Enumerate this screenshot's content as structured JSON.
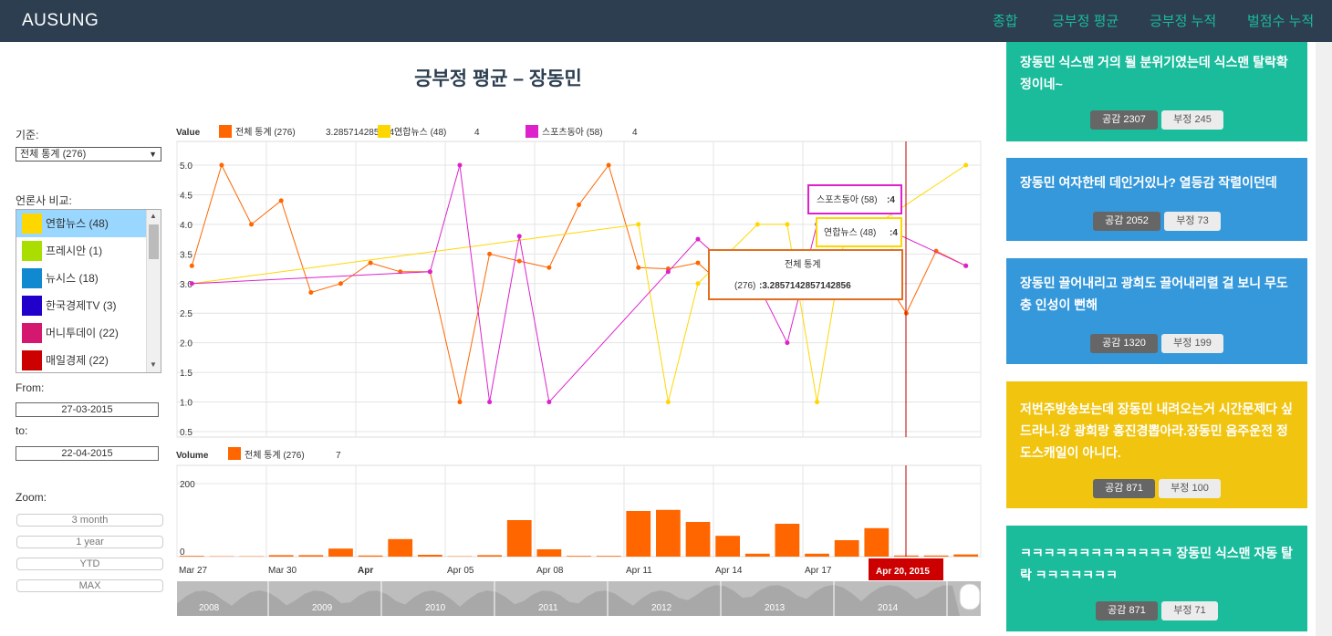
{
  "navbar": {
    "brand": "AUSUNG",
    "links": [
      "종합",
      "긍부정 평균",
      "긍부정 누적",
      "벌점수 누적"
    ]
  },
  "page_title": "긍부정 평균 – 장동민",
  "controls": {
    "basis_label": "기준:",
    "basis_value": "전체 통계 (276)",
    "compare_label": "언론사 비교:",
    "outlets": [
      {
        "label": "연합뉴스 (48)",
        "color": "#ffd700",
        "selected": true
      },
      {
        "label": "프레시안 (1)",
        "color": "#aadd00",
        "selected": false
      },
      {
        "label": "뉴시스 (18)",
        "color": "#1189d0",
        "selected": false
      },
      {
        "label": "한국경제TV (3)",
        "color": "#2200cc",
        "selected": false
      },
      {
        "label": "머니투데이 (22)",
        "color": "#d41870",
        "selected": false
      },
      {
        "label": "매일경제 (22)",
        "color": "#cc0000",
        "selected": false
      }
    ],
    "from_label": "From:",
    "from_value": "27-03-2015",
    "to_label": "to:",
    "to_value": "22-04-2015",
    "zoom_label": "Zoom:",
    "zoom_options": [
      "3 month",
      "1 year",
      "YTD",
      "MAX"
    ]
  },
  "chart_data": [
    {
      "type": "line",
      "title": "Value",
      "ylim": [
        0.5,
        5.0
      ],
      "yticks": [
        "5.0",
        "4.5",
        "4.0",
        "3.5",
        "3.0",
        "2.5",
        "2.0",
        "1.5",
        "1.0",
        "0.5"
      ],
      "legend": [
        {
          "name": "전체 통계 (276)",
          "value": "3.285714285714…",
          "color": "#ff6600"
        },
        {
          "name": "연합뉴스 (48)",
          "value": "4",
          "color": "#ffd700"
        },
        {
          "name": "스포츠동아 (58)",
          "value": "4",
          "color": "#dd22cc"
        }
      ],
      "x_labels": [
        "Mar 27",
        "Mar 30",
        "Apr",
        "Apr 05",
        "Apr 08",
        "Apr 11",
        "Apr 14",
        "Apr 17",
        "Apr 20, 2015"
      ],
      "series": [
        {
          "name": "전체 통계 (276)",
          "color": "#ff6600",
          "values": [
            [
              27,
              3.3
            ],
            [
              28,
              5.0
            ],
            [
              29,
              4.0
            ],
            [
              30,
              4.4
            ],
            [
              31,
              2.85
            ],
            [
              32,
              3.0
            ],
            [
              33,
              3.35
            ],
            [
              34,
              3.2
            ],
            [
              35,
              3.2
            ],
            [
              36,
              1.0
            ],
            [
              37,
              3.5
            ],
            [
              38,
              3.38
            ],
            [
              39,
              3.27
            ],
            [
              40,
              4.33
            ],
            [
              41,
              5.0
            ],
            [
              42,
              3.27
            ],
            [
              43,
              3.25
            ],
            [
              44,
              3.35
            ],
            [
              45,
              2.9
            ],
            [
              46,
              2.97
            ],
            [
              47,
              3.3
            ],
            [
              48,
              3.35
            ],
            [
              49,
              3.2
            ],
            [
              50,
              3.29
            ],
            [
              51,
              2.5
            ],
            [
              52,
              3.55
            ],
            [
              53,
              3.3
            ]
          ]
        },
        {
          "name": "연합뉴스 (48)",
          "color": "#ffd700",
          "values": [
            [
              27,
              3.0
            ],
            [
              42,
              4.0
            ],
            [
              43,
              1.0
            ],
            [
              44,
              3.0
            ],
            [
              46,
              4.0
            ],
            [
              47,
              4.0
            ],
            [
              48,
              1.0
            ],
            [
              49,
              4.0
            ],
            [
              50,
              4.0
            ],
            [
              53,
              5.0
            ]
          ]
        },
        {
          "name": "스포츠동아 (58)",
          "color": "#dd22cc",
          "values": [
            [
              27,
              3.0
            ],
            [
              35,
              3.2
            ],
            [
              36,
              5.0
            ],
            [
              37,
              1.0
            ],
            [
              38,
              3.8
            ],
            [
              39,
              1.0
            ],
            [
              43,
              3.2
            ],
            [
              44,
              3.75
            ],
            [
              45,
              3.3
            ],
            [
              46,
              3.0
            ],
            [
              47,
              2.0
            ],
            [
              48,
              4.0
            ],
            [
              49,
              4.0
            ],
            [
              50,
              4.0
            ],
            [
              53,
              3.3
            ]
          ]
        }
      ],
      "tooltips": [
        {
          "series": "스포츠동아 (58)",
          "value": "4"
        },
        {
          "series": "연합뉴스 (48)",
          "value": "4"
        },
        {
          "series": "전체 통계",
          "line2": "(276)",
          "value": "3.2857142857142856"
        }
      ]
    },
    {
      "type": "bar",
      "title": "Volume",
      "legend": [
        {
          "name": "전체 통계 (276)",
          "value": "7",
          "color": "#ff6600"
        }
      ],
      "ylim": [
        0,
        300
      ],
      "yticks": [
        "200",
        "0"
      ],
      "x": [
        27,
        28,
        29,
        30,
        31,
        32,
        33,
        34,
        35,
        36,
        37,
        38,
        39,
        40,
        41,
        42,
        43,
        44,
        45,
        46,
        47,
        48,
        49,
        50,
        51,
        52,
        53
      ],
      "values": [
        2,
        1,
        1,
        4,
        4,
        22,
        3,
        48,
        5,
        1,
        4,
        100,
        20,
        2,
        2,
        125,
        128,
        95,
        57,
        8,
        90,
        8,
        45,
        78,
        3,
        3,
        6
      ]
    }
  ],
  "navigator": {
    "years": [
      "2008",
      "2009",
      "2010",
      "2011",
      "2012",
      "2013",
      "2014"
    ]
  },
  "cards": [
    {
      "text": "장동민 식스맨 거의 될 분위기였는데 식스맨 탈락확정이네~",
      "like": "공감 2307",
      "dislike": "부정 245",
      "color": "#1abc9c"
    },
    {
      "text": "장동민 여자한테 데인거있나? 열등감 작렬이던데",
      "like": "공감 2052",
      "dislike": "부정 73",
      "color": "#3498db"
    },
    {
      "text": "장동민 끌어내리고 광희도 끌어내리렬 걸 보니 무도충 인성이 뻔해",
      "like": "공감 1320",
      "dislike": "부정 199",
      "color": "#3498db"
    },
    {
      "text": "저번주방송보는데 장동민 내려오는거 시간문제다 싶드라니.강 광희랑 홍진경뽑아라.장동민 음주운전 정도스캐일이 아니다.",
      "like": "공감 871",
      "dislike": "부정 100",
      "color": "#f1c40f"
    },
    {
      "text": "ㅋㅋㅋㅋㅋㅋㅋㅋㅋㅋㅋㅋㅋ 장동민 식스맨 자동 탈락 ㅋㅋㅋㅋㅋㅋㅋ",
      "like": "공감 871",
      "dislike": "부정 71",
      "color": "#1abc9c"
    }
  ]
}
